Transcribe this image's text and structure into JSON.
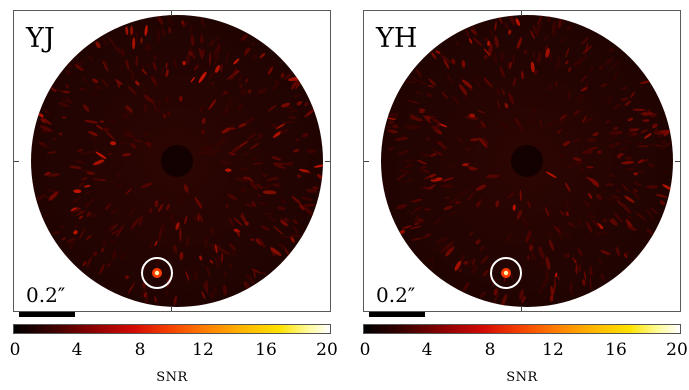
{
  "panels": [
    {
      "band": "YJ",
      "scale_label": "0.2″"
    },
    {
      "band": "YH",
      "scale_label": "0.2″"
    }
  ],
  "colorbar": {
    "ticks": [
      "0",
      "4",
      "8",
      "12",
      "16",
      "20"
    ],
    "range": [
      0,
      20
    ],
    "title": "SNR"
  },
  "colors": {
    "background": "#240402",
    "circle": "#ffffff"
  }
}
